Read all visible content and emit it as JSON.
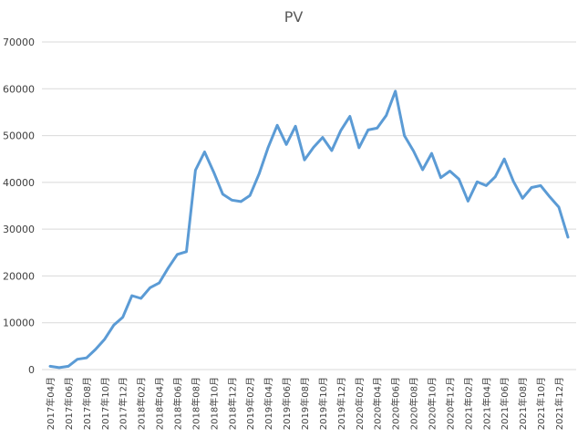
{
  "chart_data": {
    "type": "line",
    "title": "PV",
    "xlabel": "",
    "ylabel": "",
    "ylim": [
      0,
      70000
    ],
    "yticks": [
      "0",
      "10000",
      "20000",
      "30000",
      "40000",
      "50000",
      "60000",
      "70000"
    ],
    "grid": true,
    "legend": "none",
    "colors": {
      "line": "#5b9bd5",
      "grid": "#d9d9d9",
      "text": "#595959"
    },
    "x": [
      "2017年04月",
      "2017年05月",
      "2017年06月",
      "2017年07月",
      "2017年08月",
      "2017年09月",
      "2017年10月",
      "2017年11月",
      "2017年12月",
      "2018年01月",
      "2018年02月",
      "2018年03月",
      "2018年04月",
      "2018年05月",
      "2018年06月",
      "2018年07月",
      "2018年08月",
      "2018年09月",
      "2018年10月",
      "2018年11月",
      "2018年12月",
      "2019年01月",
      "2019年02月",
      "2019年03月",
      "2019年04月",
      "2019年05月",
      "2019年06月",
      "2019年07月",
      "2019年08月",
      "2019年09月",
      "2019年10月",
      "2019年11月",
      "2019年12月",
      "2020年01月",
      "2020年02月",
      "2020年03月",
      "2020年04月",
      "2020年05月",
      "2020年06月",
      "2020年07月",
      "2020年08月",
      "2020年09月",
      "2020年10月",
      "2020年11月",
      "2020年12月",
      "2021年01月",
      "2021年02月",
      "2021年03月",
      "2021年04月",
      "2021年05月",
      "2021年06月",
      "2021年07月",
      "2021年08月",
      "2021年09月",
      "2021年10月",
      "2021年11月",
      "2021年12月",
      "2022年01月"
    ],
    "xtick_labels": [
      "2017年04月",
      "2017年06月",
      "2017年08月",
      "2017年10月",
      "2017年12月",
      "2018年02月",
      "2018年04月",
      "2018年06月",
      "2018年08月",
      "2018年10月",
      "2018年12月",
      "2019年02月",
      "2019年04月",
      "2019年06月",
      "2019年08月",
      "2019年10月",
      "2019年12月",
      "2020年02月",
      "2020年04月",
      "2020年06月",
      "2020年08月",
      "2020年10月",
      "2020年12月",
      "2021年02月",
      "2021年04月",
      "2021年06月",
      "2021年08月",
      "2021年10月",
      "2021年12月"
    ],
    "series": [
      {
        "values": [
          700,
          400,
          700,
          2200,
          2500,
          4300,
          6500,
          9500,
          11200,
          15800,
          15200,
          17500,
          18500,
          21700,
          24600,
          25200,
          42600,
          46500,
          42200,
          37500,
          36200,
          35900,
          37200,
          41800,
          47500,
          52200,
          48100,
          52000,
          44800,
          47500,
          49600,
          46800,
          51100,
          54100,
          47400,
          51200,
          51600,
          54300,
          59500,
          50000,
          46700,
          42700,
          46200,
          41000,
          42400,
          40700,
          36000,
          40100,
          39300,
          41200,
          45000,
          40200,
          36600,
          38900,
          39300,
          36900,
          34700,
          28300
        ]
      }
    ]
  }
}
